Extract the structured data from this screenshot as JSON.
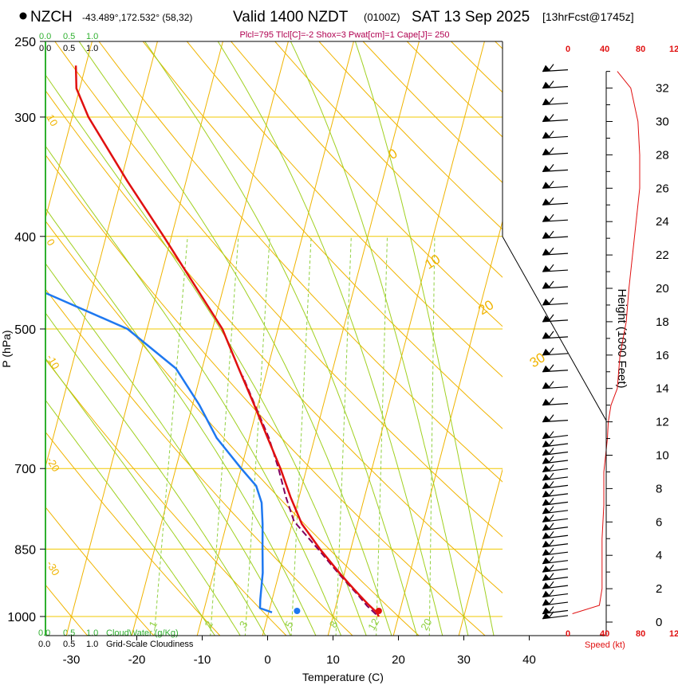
{
  "header": {
    "station": "NZCH",
    "coords": "-43.489°,172.532° (58,32)",
    "valid": "Valid 1400 NZDT",
    "utc": "(0100Z)",
    "date": "SAT 13 Sep 2025",
    "forecast": "[13hrFcst@1745z]",
    "indices": "Plcl=795 Tlcl[C]=-2 Shox=3 Pwat[cm]=1 Cape[J]= 250"
  },
  "colors": {
    "isotherm": "#f0b400",
    "isobar": "#f0c800",
    "dry_adiabat": "#f0b400",
    "moist_adiabat": "#a0d020",
    "mixing_ratio": "#90d040",
    "temperature": "#e01010",
    "dewpoint": "#1e78f0",
    "parcel": "#800060",
    "cloud_axis": "#30b030",
    "height_profile": "#e01010",
    "indices_text": "#b00050"
  },
  "chart_data": {
    "type": "line",
    "title": "Skew-T log-P sounding",
    "xlabel": "Temperature (C)",
    "ylabel": "P (hPa)",
    "right_label": "Height (1000 Feet)",
    "xlim": [
      -35,
      36
    ],
    "ylim": [
      1020,
      250
    ],
    "x_ticks": [
      -30,
      -20,
      -10,
      0,
      10,
      20,
      30,
      40
    ],
    "pressure_ticks": [
      250,
      300,
      400,
      500,
      700,
      850,
      1000
    ],
    "height_ticks": [
      0,
      2,
      4,
      6,
      8,
      10,
      12,
      14,
      16,
      18,
      20,
      22,
      24,
      26,
      28,
      30,
      32
    ],
    "isotherm_labels": [
      {
        "text": "0",
        "t": 0
      },
      {
        "text": "10",
        "t": 10
      },
      {
        "text": "20",
        "t": 20
      },
      {
        "text": "30",
        "t": 30
      }
    ],
    "left_isotherm_labels": [
      {
        "text": "10",
        "p": 300
      },
      {
        "text": "0",
        "p": 405
      },
      {
        "text": "-10",
        "p": 535
      },
      {
        "text": "-20",
        "p": 685
      },
      {
        "text": "-30",
        "p": 880
      }
    ],
    "mixing_ratio_labels": [
      "1",
      "2",
      "3",
      "5",
      "8",
      "12",
      "20"
    ],
    "mixing_ratio_lines": [
      1,
      2,
      3,
      5,
      8,
      12,
      20
    ],
    "temperature": {
      "p": [
        1000,
        990,
        970,
        950,
        925,
        900,
        850,
        800,
        750,
        700,
        650,
        600,
        550,
        500,
        450,
        400,
        350,
        300,
        280,
        265
      ],
      "t": [
        17,
        16.5,
        14.8,
        13.2,
        11.2,
        9.2,
        5.3,
        1.5,
        -1.3,
        -4.0,
        -7.2,
        -10.6,
        -14.4,
        -18.5,
        -24.5,
        -31.2,
        -39.0,
        -47.5,
        -50.5,
        -51.5
      ]
    },
    "dewpoint": {
      "p": [
        990,
        980,
        960,
        900,
        850,
        800,
        760,
        730,
        700,
        650,
        600,
        550,
        500,
        450,
        430,
        400,
        360,
        320,
        300,
        275,
        260
      ],
      "t": [
        0.5,
        -1.5,
        -1.8,
        -2.5,
        -3.5,
        -4.5,
        -5.5,
        -7.0,
        -10.0,
        -15.0,
        -19.0,
        -24.0,
        -33.0,
        -50.0,
        -55.0,
        -54.0,
        -55.5,
        -60.0,
        -64.0,
        -66.0,
        -66.0
      ]
    },
    "parcel": {
      "p": [
        995,
        975,
        950,
        925,
        900,
        850,
        795,
        750,
        700,
        650,
        600,
        560
      ],
      "t": [
        16.5,
        14.8,
        13.0,
        11.0,
        9.0,
        5.0,
        0.2,
        -2.0,
        -4.3,
        -7.0,
        -10.5,
        -13.5
      ]
    },
    "surface_temperature_point": {
      "p": 1000,
      "t": 17
    },
    "surface_dewpoint_point": {
      "p": 1000,
      "t": 4.5
    },
    "cloud_axes": {
      "top_ticks": [
        "0.0",
        "0.5",
        "1.0"
      ],
      "bottom_cloudwater_ticks": [
        "0.0",
        "0.5",
        "1.0"
      ],
      "bottom_cloudwater_label": "CloudWater (g/Kg)",
      "bottom_cloudiness_ticks": [
        "0.0",
        "0.5",
        "1.0"
      ],
      "bottom_cloudiness_label": "Grid-Scale Cloudiness"
    },
    "wind_speed_axis": {
      "ticks": [
        "0",
        "40",
        "80",
        "120"
      ],
      "label": "Speed (kt)",
      "profile_kft": [
        0.5,
        1,
        2,
        3,
        5,
        7,
        8,
        9,
        10,
        11,
        12,
        13,
        14,
        16,
        18,
        20,
        22,
        24,
        26,
        28,
        30,
        32,
        33
      ],
      "profile_kt": [
        5,
        35,
        38,
        38,
        38,
        40,
        40,
        40,
        42,
        44,
        45,
        48,
        55,
        58,
        65,
        68,
        72,
        76,
        80,
        80,
        78,
        70,
        55
      ]
    },
    "wind_barb_levels_kft": [
      33,
      32,
      31,
      30,
      29,
      28,
      27,
      26,
      25,
      24,
      23,
      22,
      21,
      20,
      19,
      18,
      17,
      16,
      15,
      14,
      13,
      12,
      11,
      10.5,
      10,
      9.5,
      9,
      8.5,
      8,
      7.5,
      7,
      6.5,
      6,
      5.5,
      5,
      4.5,
      4,
      3.5,
      3,
      2.5,
      2,
      1.5,
      1,
      0.5,
      0.2
    ]
  }
}
